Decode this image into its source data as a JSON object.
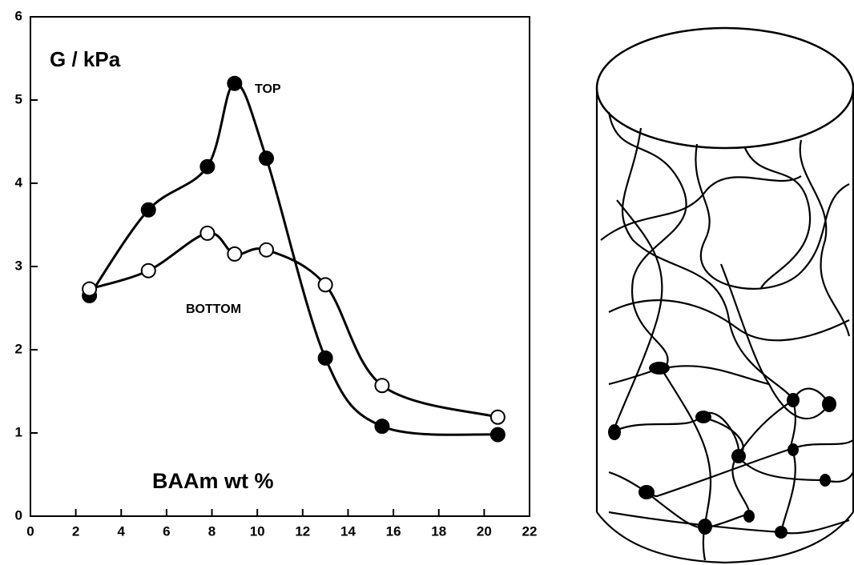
{
  "chart_data": {
    "type": "line",
    "y_label": "G / kPa",
    "x_label": "BAAm  wt %",
    "x": [
      2.6,
      5.2,
      7.8,
      9.0,
      10.4,
      13.0,
      15.5,
      20.6
    ],
    "series": [
      {
        "name": "TOP",
        "color": "#000000",
        "marker_fill": "#000000",
        "values": [
          2.65,
          3.68,
          4.2,
          5.2,
          4.3,
          1.9,
          1.08,
          0.98
        ]
      },
      {
        "name": "BOTTOM",
        "color": "#000000",
        "marker_fill": "#ffffff",
        "values": [
          2.73,
          2.95,
          3.4,
          3.15,
          3.2,
          2.78,
          1.57,
          1.19
        ]
      }
    ],
    "xlim": [
      0,
      22
    ],
    "ylim": [
      0,
      6
    ],
    "xticks": [
      0,
      2,
      4,
      6,
      8,
      10,
      12,
      14,
      16,
      18,
      20,
      22
    ],
    "yticks": [
      0,
      1,
      2,
      3,
      4,
      5,
      6
    ]
  }
}
